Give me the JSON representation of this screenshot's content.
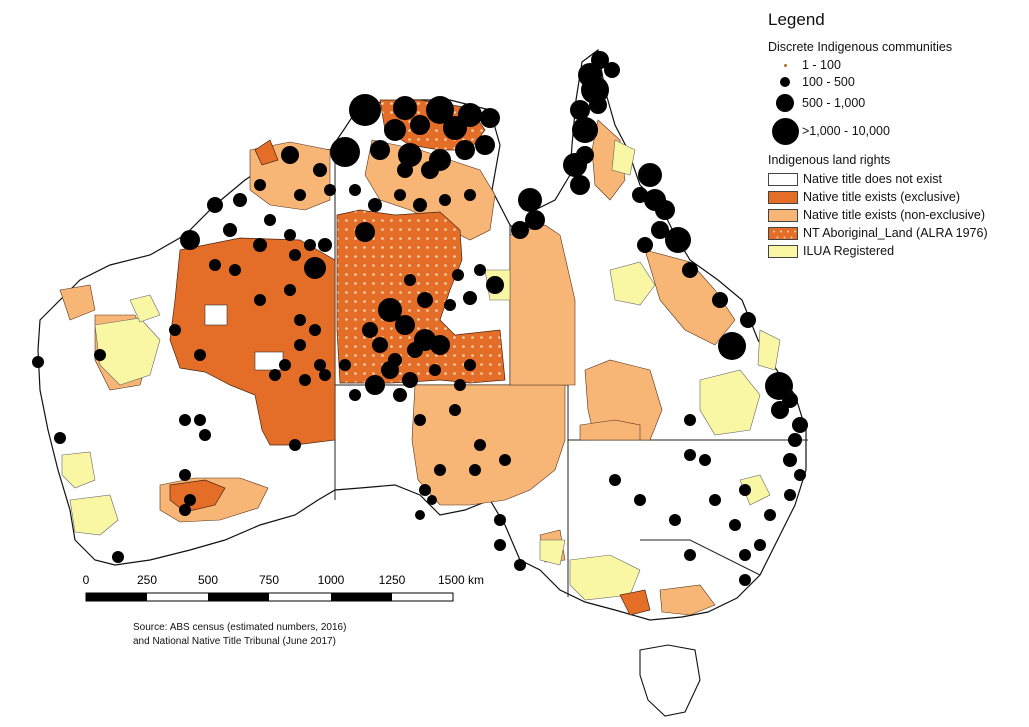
{
  "legend": {
    "title": "Legend",
    "communities_heading": "Discrete Indigenous communities",
    "community_classes": [
      "1 - 100",
      "100 - 500",
      "500 - 1,000",
      ">1,000 - 10,000"
    ],
    "land_heading": "Indigenous land rights",
    "land_classes": [
      {
        "label": "Native title does not exist",
        "color": "#ffffff"
      },
      {
        "label": "Native title exists (exclusive)",
        "color": "#e46e27"
      },
      {
        "label": "Native title exists (non-exclusive)",
        "color": "#f7b676"
      },
      {
        "label": "NT Aboriginal_Land (ALRA 1976)",
        "color": "#e46e27"
      },
      {
        "label": "ILUA Registered",
        "color": "#f9f7a4"
      }
    ]
  },
  "scale_bar": {
    "ticks": [
      "0",
      "250",
      "500",
      "750",
      "1000",
      "1250",
      "1500 km"
    ]
  },
  "source": {
    "line1": "Source: ABS census (estimated numbers, 2016)",
    "line2": "and National Native Title Tribunal (June 2017)"
  },
  "colors": {
    "exclusive": "#e46e27",
    "non_exclusive": "#f7b676",
    "ilua": "#f9f7a4",
    "nt_aboriginal_dots": "#f9d2b0",
    "community_dot": "#000000"
  }
}
